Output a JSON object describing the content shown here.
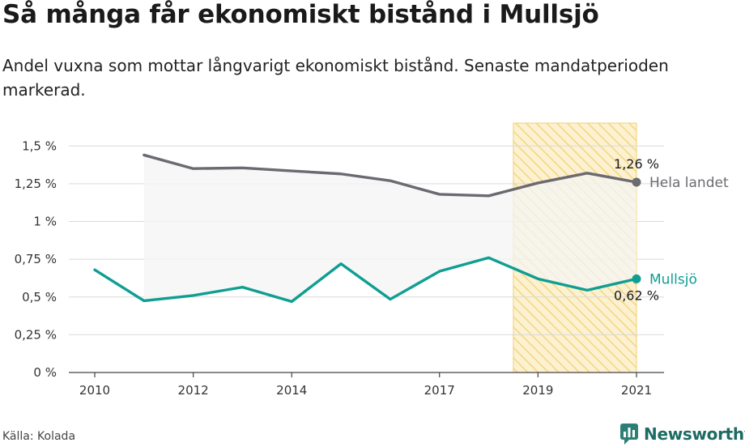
{
  "title": "Så många får ekonomiskt bistånd i Mullsjö",
  "subtitle": "Andel vuxna som mottar långvarigt ekonomiskt bistånd. Senaste mandatperioden markerad.",
  "source": "Källa: Kolada",
  "brand": "Newsworthy",
  "colors": {
    "national": "#6b6a70",
    "local": "#0f9e92",
    "highlight_fill": "#fbeec8",
    "highlight_stroke": "#f2cf6d",
    "band": "#f4f4f4",
    "brand": "#1d6b63"
  },
  "chart_data": {
    "type": "line",
    "xlim": [
      2009.5,
      2021.5
    ],
    "ylim": [
      0,
      1.6
    ],
    "x_ticks": [
      2010,
      2012,
      2014,
      2017,
      2019,
      2021
    ],
    "y_ticks": [
      {
        "value": 0,
        "label": "0 %"
      },
      {
        "value": 0.25,
        "label": "0,25 %"
      },
      {
        "value": 0.5,
        "label": "0,5 %"
      },
      {
        "value": 0.75,
        "label": "0,75 %"
      },
      {
        "value": 1,
        "label": "1 %"
      },
      {
        "value": 1.25,
        "label": "1,25 %"
      },
      {
        "value": 1.5,
        "label": "1,5 %"
      }
    ],
    "grid": true,
    "highlight_period": {
      "from": 2018.5,
      "to": 2021
    },
    "series": [
      {
        "name": "Hela landet",
        "color_key": "national",
        "x": [
          2011,
          2012,
          2013,
          2014,
          2015,
          2016,
          2017,
          2018,
          2019,
          2020,
          2021
        ],
        "values": [
          1.44,
          1.35,
          1.355,
          1.335,
          1.315,
          1.27,
          1.18,
          1.17,
          1.255,
          1.32,
          1.26
        ],
        "end_label": "1,26 %"
      },
      {
        "name": "Mullsjö",
        "color_key": "local",
        "x": [
          2010,
          2011,
          2012,
          2013,
          2014,
          2015,
          2016,
          2017,
          2018,
          2019,
          2020,
          2021
        ],
        "values": [
          0.68,
          0.475,
          0.51,
          0.565,
          0.47,
          0.72,
          0.485,
          0.67,
          0.76,
          0.62,
          0.545,
          0.62
        ],
        "end_label": "0,62 %"
      }
    ]
  }
}
